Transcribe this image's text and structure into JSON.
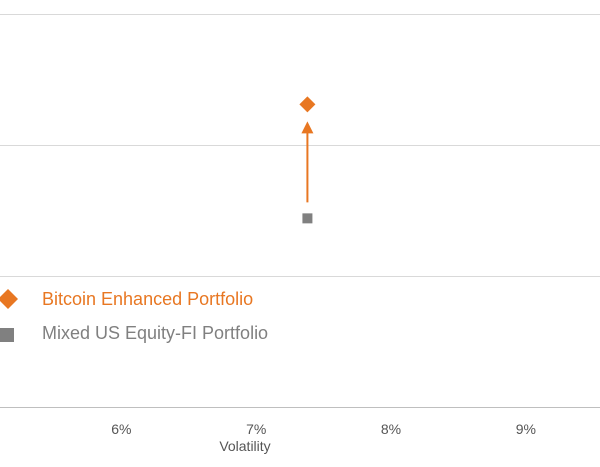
{
  "chart_data": {
    "type": "scatter",
    "title": "",
    "xlabel": "Volatility",
    "ylabel": "",
    "x_ticks": [
      "6%",
      "7%",
      "8%",
      "9%"
    ],
    "xlim": [
      5.1,
      9.55
    ],
    "x_tick_values": [
      6,
      7,
      8,
      9
    ],
    "grid": true,
    "legend_placement": "left",
    "series": [
      {
        "name": "Bitcoin Enhanced Portfolio",
        "marker": "diamond",
        "color": "#E87722",
        "points": [
          {
            "x": 7.38,
            "y": 0.77
          }
        ]
      },
      {
        "name": "Mixed US Equity-FI Portfolio",
        "marker": "square",
        "color": "#808080",
        "points": [
          {
            "x": 7.38,
            "y": 0.48
          }
        ]
      }
    ],
    "annotations": [
      {
        "type": "arrow",
        "from_series": "Mixed US Equity-FI Portfolio",
        "to_series": "Bitcoin Enhanced Portfolio",
        "color": "#E87722"
      }
    ]
  }
}
